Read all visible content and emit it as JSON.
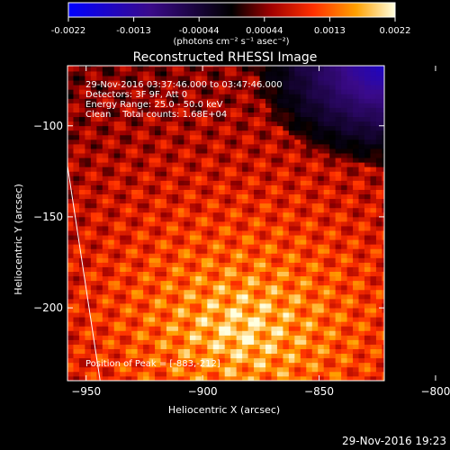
{
  "colorbar": {
    "ticks": [
      "-0.0022",
      "-0.0013",
      "-0.00044",
      "0.00044",
      "0.0013",
      "0.0022"
    ],
    "unit_label": "(photons cm⁻² s⁻¹ asec⁻²)"
  },
  "chart_data": {
    "type": "heatmap",
    "title": "Reconstructed RHESSI Image",
    "xlabel": "Heliocentric X (arcsec)",
    "ylabel": "Heliocentric Y (arcsec)",
    "xlim": [
      -958,
      -822
    ],
    "ylim": [
      -240,
      -67
    ],
    "x_ticks": [
      {
        "value": -950,
        "label": "−950"
      },
      {
        "value": -900,
        "label": "−900"
      },
      {
        "value": -850,
        "label": "−850"
      },
      {
        "value": -800,
        "label": "−800"
      }
    ],
    "y_ticks": [
      {
        "value": -100,
        "label": "−100"
      },
      {
        "value": -150,
        "label": "−150"
      },
      {
        "value": -200,
        "label": "−200"
      }
    ],
    "color_range": [
      -0.0022,
      0.0022
    ],
    "peak": [
      -883,
      -212
    ],
    "annotations": [
      "29-Nov-2016 03:37:46.000 to 03:47:46.000",
      "Detectors: 3F 9F, Att 0",
      "Energy Range: 25.0 - 50.0 keV",
      "Clean    Total counts: 1.68E+04"
    ],
    "peak_label": "Position of Peak = [-883,-212]",
    "limb": true
  },
  "footer_timestamp": "29-Nov-2016 19:23"
}
